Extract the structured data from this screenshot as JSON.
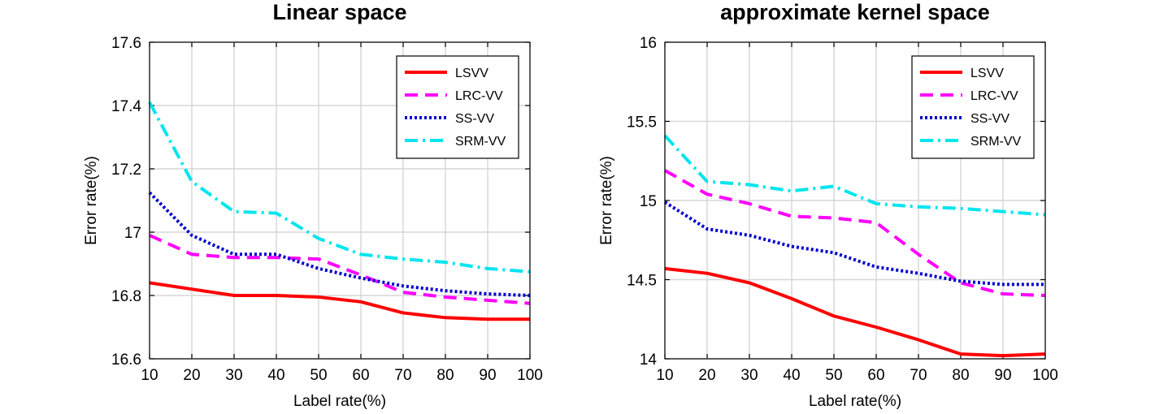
{
  "chart_data": [
    {
      "type": "line",
      "title": "Linear space",
      "xlabel": "Label rate(%)",
      "ylabel": "Error rate(%)",
      "x": [
        10,
        20,
        30,
        40,
        50,
        60,
        70,
        80,
        90,
        100
      ],
      "xlim": [
        10,
        100
      ],
      "ylim": [
        16.6,
        17.6
      ],
      "xticks": [
        "10",
        "20",
        "30",
        "40",
        "50",
        "60",
        "70",
        "80",
        "90",
        "100"
      ],
      "yticks": [
        "16.6",
        "16.8",
        "17",
        "17.2",
        "17.4",
        "17.6"
      ],
      "grid": true,
      "legend_position": "top-right",
      "series": [
        {
          "name": "LSVV",
          "color": "#ff0000",
          "style": "solid",
          "values": [
            16.84,
            16.82,
            16.8,
            16.8,
            16.795,
            16.78,
            16.745,
            16.73,
            16.725,
            16.725
          ]
        },
        {
          "name": "LRC-VV",
          "color": "#ff00ff",
          "style": "dashed",
          "values": [
            16.99,
            16.93,
            16.92,
            16.92,
            16.915,
            16.865,
            16.81,
            16.795,
            16.785,
            16.775
          ]
        },
        {
          "name": "SS-VV",
          "color": "#0000cc",
          "style": "dotted",
          "values": [
            17.125,
            16.99,
            16.93,
            16.93,
            16.885,
            16.855,
            16.83,
            16.815,
            16.805,
            16.8
          ]
        },
        {
          "name": "SRM-VV",
          "color": "#00e5ee",
          "style": "dashdot",
          "values": [
            17.41,
            17.16,
            17.065,
            17.06,
            16.98,
            16.93,
            16.915,
            16.905,
            16.885,
            16.875
          ]
        }
      ]
    },
    {
      "type": "line",
      "title": "approximate kernel space",
      "xlabel": "Label rate(%)",
      "ylabel": "Error rate(%)",
      "x": [
        10,
        20,
        30,
        40,
        50,
        60,
        70,
        80,
        90,
        100
      ],
      "xlim": [
        10,
        100
      ],
      "ylim": [
        14,
        16
      ],
      "xticks": [
        "10",
        "20",
        "30",
        "40",
        "50",
        "60",
        "70",
        "80",
        "90",
        "100"
      ],
      "yticks": [
        "14",
        "14.5",
        "15",
        "15.5",
        "16"
      ],
      "grid": true,
      "legend_position": "top-right",
      "series": [
        {
          "name": "LSVV",
          "color": "#ff0000",
          "style": "solid",
          "values": [
            14.57,
            14.54,
            14.48,
            14.38,
            14.27,
            14.2,
            14.12,
            14.03,
            14.02,
            14.03
          ]
        },
        {
          "name": "LRC-VV",
          "color": "#ff00ff",
          "style": "dashed",
          "values": [
            15.19,
            15.04,
            14.98,
            14.9,
            14.89,
            14.86,
            14.66,
            14.48,
            14.41,
            14.4
          ]
        },
        {
          "name": "SS-VV",
          "color": "#0000cc",
          "style": "dotted",
          "values": [
            14.99,
            14.82,
            14.78,
            14.71,
            14.67,
            14.58,
            14.54,
            14.49,
            14.47,
            14.47
          ]
        },
        {
          "name": "SRM-VV",
          "color": "#00e5ee",
          "style": "dashdot",
          "values": [
            15.41,
            15.12,
            15.1,
            15.06,
            15.09,
            14.98,
            14.96,
            14.95,
            14.93,
            14.91
          ]
        }
      ]
    }
  ]
}
